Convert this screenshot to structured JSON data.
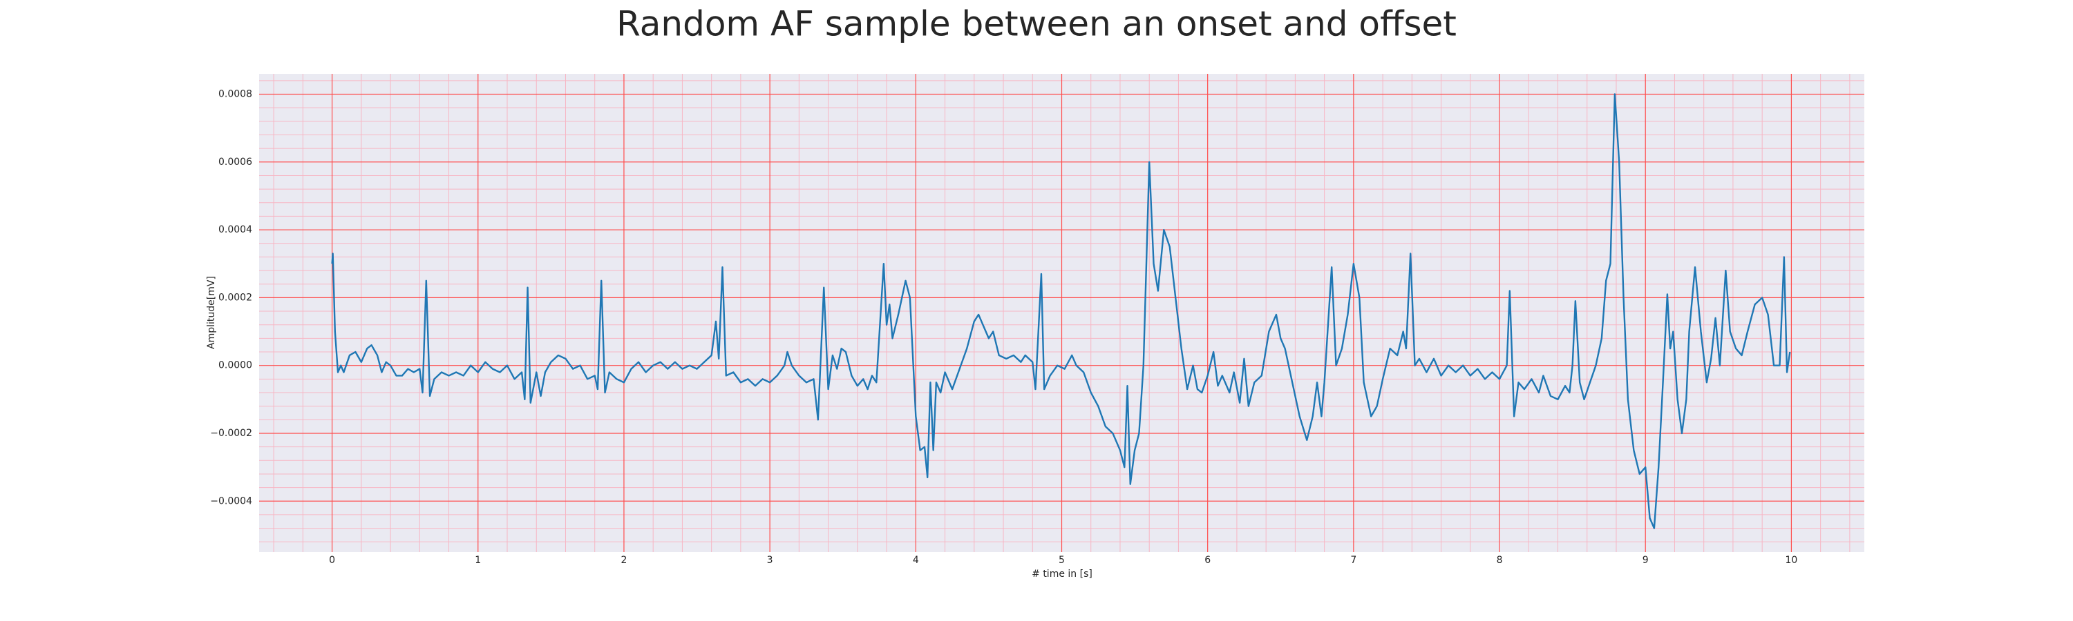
{
  "chart_data": {
    "type": "line",
    "title": "Random AF sample between an onset and offset",
    "xlabel": "# time in [s]",
    "ylabel": "Amplitude[mV]",
    "xlim": [
      -0.5,
      10.5
    ],
    "ylim": [
      -0.00055,
      0.00086
    ],
    "xticks": [
      0,
      1,
      2,
      3,
      4,
      5,
      6,
      7,
      8,
      9,
      10
    ],
    "yticks": [
      {
        "value": -0.0004,
        "label": "−0.0004"
      },
      {
        "value": -0.0002,
        "label": "−0.0002"
      },
      {
        "value": 0,
        "label": "0.0000"
      },
      0.0002,
      0.0004,
      0.0006,
      0.0008
    ],
    "grid": true,
    "minor_grid": true,
    "grid_color": "#ff4d4d",
    "minor_grid_color": "#f7b6c4",
    "background": "#eaeaf2",
    "series": [
      {
        "color": "#1f77b4",
        "x": [
          0,
          0.005,
          0.02,
          0.04,
          0.06,
          0.08,
          0.12,
          0.16,
          0.2,
          0.24,
          0.27,
          0.31,
          0.34,
          0.37,
          0.4,
          0.44,
          0.48,
          0.52,
          0.56,
          0.6,
          0.62,
          0.645,
          0.67,
          0.7,
          0.75,
          0.8,
          0.85,
          0.9,
          0.95,
          1.0,
          1.05,
          1.1,
          1.15,
          1.2,
          1.25,
          1.3,
          1.32,
          1.34,
          1.36,
          1.4,
          1.43,
          1.46,
          1.5,
          1.55,
          1.6,
          1.65,
          1.7,
          1.75,
          1.8,
          1.82,
          1.845,
          1.87,
          1.9,
          1.95,
          2.0,
          2.05,
          2.1,
          2.15,
          2.2,
          2.25,
          2.3,
          2.35,
          2.4,
          2.45,
          2.5,
          2.55,
          2.6,
          2.63,
          2.65,
          2.675,
          2.7,
          2.75,
          2.8,
          2.85,
          2.9,
          2.95,
          3.0,
          3.05,
          3.1,
          3.12,
          3.15,
          3.2,
          3.25,
          3.3,
          3.33,
          3.37,
          3.4,
          3.43,
          3.46,
          3.49,
          3.52,
          3.56,
          3.6,
          3.64,
          3.67,
          3.7,
          3.73,
          3.78,
          3.8,
          3.82,
          3.84,
          3.88,
          3.93,
          3.96,
          4.0,
          4.03,
          4.06,
          4.08,
          4.1,
          4.12,
          4.14,
          4.17,
          4.2,
          4.25,
          4.3,
          4.35,
          4.4,
          4.43,
          4.47,
          4.5,
          4.53,
          4.57,
          4.62,
          4.67,
          4.72,
          4.75,
          4.8,
          4.82,
          4.86,
          4.88,
          4.92,
          4.97,
          5.02,
          5.07,
          5.1,
          5.15,
          5.2,
          5.25,
          5.3,
          5.35,
          5.4,
          5.43,
          5.45,
          5.47,
          5.5,
          5.53,
          5.56,
          5.6,
          5.63,
          5.66,
          5.7,
          5.74,
          5.78,
          5.82,
          5.86,
          5.9,
          5.93,
          5.96,
          6.0,
          6.04,
          6.07,
          6.1,
          6.15,
          6.18,
          6.22,
          6.25,
          6.28,
          6.32,
          6.37,
          6.42,
          6.47,
          6.5,
          6.53,
          6.58,
          6.63,
          6.68,
          6.72,
          6.75,
          6.78,
          6.8,
          6.85,
          6.88,
          6.92,
          6.96,
          7.0,
          7.04,
          7.07,
          7.12,
          7.16,
          7.2,
          7.25,
          7.3,
          7.34,
          7.36,
          7.39,
          7.42,
          7.45,
          7.5,
          7.55,
          7.6,
          7.65,
          7.7,
          7.75,
          7.8,
          7.85,
          7.9,
          7.95,
          8.0,
          8.05,
          8.07,
          8.1,
          8.13,
          8.17,
          8.22,
          8.27,
          8.3,
          8.35,
          8.4,
          8.45,
          8.48,
          8.5,
          8.52,
          8.55,
          8.58,
          8.62,
          8.66,
          8.7,
          8.73,
          8.76,
          8.79,
          8.82,
          8.85,
          8.88,
          8.92,
          8.96,
          9.0,
          9.03,
          9.06,
          9.09,
          9.12,
          9.15,
          9.17,
          9.19,
          9.22,
          9.25,
          9.28,
          9.3,
          9.34,
          9.38,
          9.42,
          9.45,
          9.48,
          9.51,
          9.55,
          9.58,
          9.62,
          9.66,
          9.7,
          9.75,
          9.8,
          9.84,
          9.88,
          9.92,
          9.95,
          9.97,
          9.99
        ],
        "values": [
          0.0003,
          0.00033,
          0.0001,
          -2e-05,
          0.0,
          -2e-05,
          3e-05,
          4e-05,
          1e-05,
          5e-05,
          6e-05,
          3e-05,
          -2e-05,
          1e-05,
          0.0,
          -3e-05,
          -3e-05,
          -1e-05,
          -2e-05,
          -1e-05,
          -8e-05,
          0.00025,
          -9e-05,
          -4e-05,
          -2e-05,
          -3e-05,
          -2e-05,
          -3e-05,
          0.0,
          -2e-05,
          1e-05,
          -1e-05,
          -2e-05,
          0.0,
          -4e-05,
          -2e-05,
          -0.0001,
          0.00023,
          -0.00011,
          -2e-05,
          -9e-05,
          -2e-05,
          1e-05,
          3e-05,
          2e-05,
          -1e-05,
          0.0,
          -4e-05,
          -3e-05,
          -7e-05,
          0.00025,
          -8e-05,
          -2e-05,
          -4e-05,
          -5e-05,
          -1e-05,
          1e-05,
          -2e-05,
          0.0,
          1e-05,
          -1e-05,
          1e-05,
          -1e-05,
          0.0,
          -1e-05,
          1e-05,
          3e-05,
          0.00013,
          2e-05,
          0.00029,
          -3e-05,
          -2e-05,
          -5e-05,
          -4e-05,
          -6e-05,
          -4e-05,
          -5e-05,
          -3e-05,
          0.0,
          4e-05,
          0.0,
          -3e-05,
          -5e-05,
          -4e-05,
          -0.00016,
          0.00023,
          -7e-05,
          3e-05,
          -1e-05,
          5e-05,
          4e-05,
          -3e-05,
          -6e-05,
          -4e-05,
          -7e-05,
          -3e-05,
          -5e-05,
          0.0003,
          0.00012,
          0.00018,
          8e-05,
          0.00015,
          0.00025,
          0.0002,
          -0.00015,
          -0.00025,
          -0.00024,
          -0.00033,
          -5e-05,
          -0.00025,
          -5e-05,
          -8e-05,
          -2e-05,
          -7e-05,
          -1e-05,
          5e-05,
          0.00013,
          0.00015,
          0.00011,
          8e-05,
          0.0001,
          3e-05,
          2e-05,
          3e-05,
          1e-05,
          3e-05,
          1e-05,
          -7e-05,
          0.00027,
          -7e-05,
          -3e-05,
          0.0,
          -1e-05,
          3e-05,
          0.0,
          -2e-05,
          -8e-05,
          -0.00012,
          -0.00018,
          -0.0002,
          -0.00025,
          -0.0003,
          -6e-05,
          -0.00035,
          -0.00025,
          -0.0002,
          0.0,
          0.0006,
          0.0003,
          0.00022,
          0.0004,
          0.00035,
          0.0002,
          5e-05,
          -7e-05,
          0.0,
          -7e-05,
          -8e-05,
          -3e-05,
          4e-05,
          -6e-05,
          -3e-05,
          -8e-05,
          -2e-05,
          -0.00011,
          2e-05,
          -0.00012,
          -5e-05,
          -3e-05,
          0.0001,
          0.00015,
          8e-05,
          5e-05,
          -5e-05,
          -0.00015,
          -0.00022,
          -0.00015,
          -5e-05,
          -0.00015,
          -5e-05,
          0.00029,
          0.0,
          5e-05,
          0.00015,
          0.0003,
          0.0002,
          -5e-05,
          -0.00015,
          -0.00012,
          -4e-05,
          5e-05,
          3e-05,
          0.0001,
          5e-05,
          0.00033,
          0.0,
          2e-05,
          -2e-05,
          2e-05,
          -3e-05,
          0.0,
          -2e-05,
          0.0,
          -3e-05,
          -1e-05,
          -4e-05,
          -2e-05,
          -4e-05,
          0.0,
          0.00022,
          -0.00015,
          -5e-05,
          -7e-05,
          -4e-05,
          -8e-05,
          -3e-05,
          -9e-05,
          -0.0001,
          -6e-05,
          -8e-05,
          0.0,
          0.00019,
          -5e-05,
          -0.0001,
          -5e-05,
          0.0,
          8e-05,
          0.00025,
          0.0003,
          0.0008,
          0.0006,
          0.0002,
          -0.0001,
          -0.00025,
          -0.00032,
          -0.0003,
          -0.00045,
          -0.00048,
          -0.0003,
          -5e-05,
          0.00021,
          5e-05,
          0.0001,
          -0.0001,
          -0.0002,
          -0.0001,
          0.0001,
          0.00029,
          0.0001,
          -5e-05,
          2e-05,
          0.00014,
          0.0,
          0.00028,
          0.0001,
          5e-05,
          3e-05,
          0.0001,
          0.00018,
          0.0002,
          0.00015,
          0.0,
          0.0,
          0.00032,
          -2e-05,
          4e-05
        ]
      }
    ]
  }
}
